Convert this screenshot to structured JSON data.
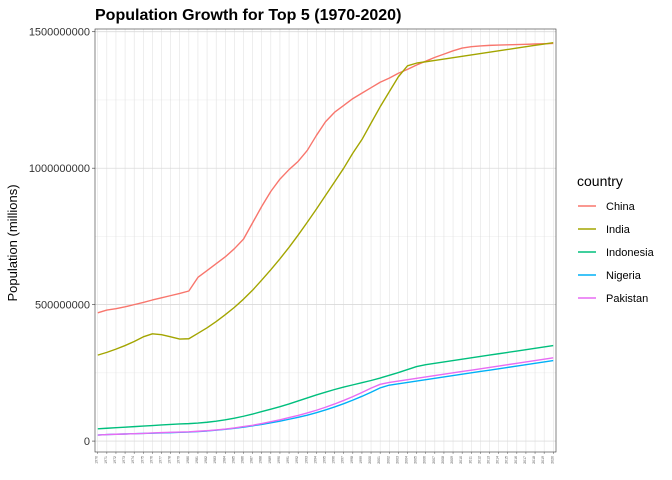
{
  "chart_data": {
    "type": "line",
    "title": "Population Growth for Top 5 (1970-2020)",
    "xlabel": "",
    "ylabel": "Population (millions)",
    "ylim": [
      -40000000,
      1510000000
    ],
    "xlim": [
      1969.7,
      2020.3
    ],
    "yticks": [
      0,
      500000000,
      1000000000,
      1500000000
    ],
    "ytick_labels": [
      "0",
      "500000000",
      "1000000000",
      "1500000000"
    ],
    "grid": true,
    "legend": {
      "title": "country",
      "placement": "right"
    },
    "x": [
      1970,
      1971,
      1972,
      1973,
      1974,
      1975,
      1976,
      1977,
      1978,
      1979,
      1980,
      1981,
      1982,
      1983,
      1984,
      1985,
      1986,
      1987,
      1988,
      1989,
      1990,
      1991,
      1992,
      1993,
      1994,
      1995,
      1996,
      1997,
      1998,
      1999,
      2000,
      2001,
      2002,
      2003,
      2004,
      2005,
      2006,
      2007,
      2008,
      2009,
      2010,
      2011,
      2012,
      2013,
      2014,
      2015,
      2016,
      2017,
      2018,
      2019,
      2020
    ],
    "series": [
      {
        "name": "China",
        "color": "#F8766D",
        "values": [
          470000000,
          480000000,
          485000000,
          492000000,
          500000000,
          508000000,
          517000000,
          525000000,
          533000000,
          541000000,
          550000000,
          600000000,
          625000000,
          650000000,
          675000000,
          705000000,
          740000000,
          800000000,
          860000000,
          915000000,
          960000000,
          995000000,
          1025000000,
          1065000000,
          1120000000,
          1170000000,
          1205000000,
          1230000000,
          1255000000,
          1275000000,
          1295000000,
          1315000000,
          1330000000,
          1348000000,
          1362000000,
          1378000000,
          1392000000,
          1406000000,
          1418000000,
          1430000000,
          1440000000,
          1445000000,
          1448000000,
          1450000000,
          1451000000,
          1452000000,
          1453000000,
          1454000000,
          1455000000,
          1456000000,
          1457000000
        ]
      },
      {
        "name": "India",
        "color": "#A3A500",
        "values": [
          315000000,
          325000000,
          337000000,
          350000000,
          365000000,
          382000000,
          393000000,
          390000000,
          382000000,
          374000000,
          375000000,
          395000000,
          415000000,
          438000000,
          463000000,
          490000000,
          520000000,
          553000000,
          590000000,
          628000000,
          668000000,
          710000000,
          755000000,
          802000000,
          850000000,
          900000000,
          950000000,
          1000000000,
          1055000000,
          1105000000,
          1165000000,
          1225000000,
          1280000000,
          1335000000,
          1375000000,
          1385000000,
          1390000000,
          1395000000,
          1400000000,
          1405000000,
          1410000000,
          1415000000,
          1420000000,
          1425000000,
          1430000000,
          1435000000,
          1440000000,
          1445000000,
          1450000000,
          1455000000,
          1460000000
        ]
      },
      {
        "name": "Indonesia",
        "color": "#00BF7D",
        "values": [
          45000000,
          47000000,
          49000000,
          51000000,
          53000000,
          55000000,
          57000000,
          59000000,
          61000000,
          63000000,
          64000000,
          66000000,
          69000000,
          73000000,
          78000000,
          84000000,
          91000000,
          99000000,
          108000000,
          117000000,
          126000000,
          136000000,
          147000000,
          158000000,
          169000000,
          179000000,
          189000000,
          198000000,
          206000000,
          214000000,
          222000000,
          231000000,
          241000000,
          251000000,
          262000000,
          273000000,
          280000000,
          285000000,
          290000000,
          295000000,
          300000000,
          305000000,
          310000000,
          315000000,
          320000000,
          325000000,
          330000000,
          335000000,
          340000000,
          345000000,
          350000000
        ]
      },
      {
        "name": "Nigeria",
        "color": "#00B0F6",
        "values": [
          22000000,
          24000000,
          25000000,
          26000000,
          27000000,
          28000000,
          29000000,
          30000000,
          31000000,
          32000000,
          33000000,
          35000000,
          37000000,
          40000000,
          43000000,
          47000000,
          51000000,
          56000000,
          61000000,
          67000000,
          73000000,
          80000000,
          87000000,
          95000000,
          104000000,
          114000000,
          125000000,
          137000000,
          150000000,
          164000000,
          179000000,
          195000000,
          205000000,
          210000000,
          215000000,
          220000000,
          225000000,
          230000000,
          235000000,
          240000000,
          245000000,
          250000000,
          255000000,
          260000000,
          265000000,
          270000000,
          275000000,
          280000000,
          285000000,
          290000000,
          295000000
        ]
      },
      {
        "name": "Pakistan",
        "color": "#E76BF3",
        "values": [
          22000000,
          24000000,
          25000000,
          26000000,
          27000000,
          28000000,
          30000000,
          31000000,
          32000000,
          33000000,
          34000000,
          36000000,
          38000000,
          41000000,
          44000000,
          48000000,
          53000000,
          58000000,
          64000000,
          71000000,
          78000000,
          86000000,
          94000000,
          103000000,
          113000000,
          124000000,
          136000000,
          149000000,
          163000000,
          178000000,
          194000000,
          208000000,
          215000000,
          220000000,
          225000000,
          230000000,
          235000000,
          240000000,
          245000000,
          250000000,
          255000000,
          260000000,
          265000000,
          270000000,
          275000000,
          280000000,
          285000000,
          290000000,
          295000000,
          300000000,
          305000000
        ]
      }
    ]
  }
}
